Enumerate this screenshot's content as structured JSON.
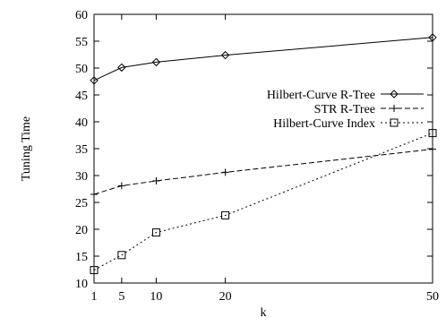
{
  "chart_data": {
    "type": "line",
    "title": "",
    "xlabel": "k",
    "ylabel": "Tuning Time",
    "xlim": [
      1,
      50
    ],
    "ylim": [
      10,
      60
    ],
    "xticks": [
      1,
      5,
      10,
      20,
      50
    ],
    "yticks": [
      10,
      15,
      20,
      25,
      30,
      35,
      40,
      45,
      50,
      55,
      60
    ],
    "grid": false,
    "legend_position": "right",
    "x": [
      1,
      5,
      10,
      20,
      50
    ],
    "series": [
      {
        "name": "Hilbert-Curve R-Tree",
        "values": [
          47.7,
          50.1,
          51.1,
          52.4,
          55.7
        ],
        "line_style": "solid",
        "marker": "diamond"
      },
      {
        "name": "STR R-Tree",
        "values": [
          26.5,
          28.1,
          29.0,
          30.6,
          34.9
        ],
        "line_style": "dashed",
        "marker": "plus"
      },
      {
        "name": "Hilbert-Curve Index",
        "values": [
          12.4,
          15.2,
          19.4,
          22.6,
          37.9
        ],
        "line_style": "dotted",
        "marker": "square"
      }
    ]
  }
}
